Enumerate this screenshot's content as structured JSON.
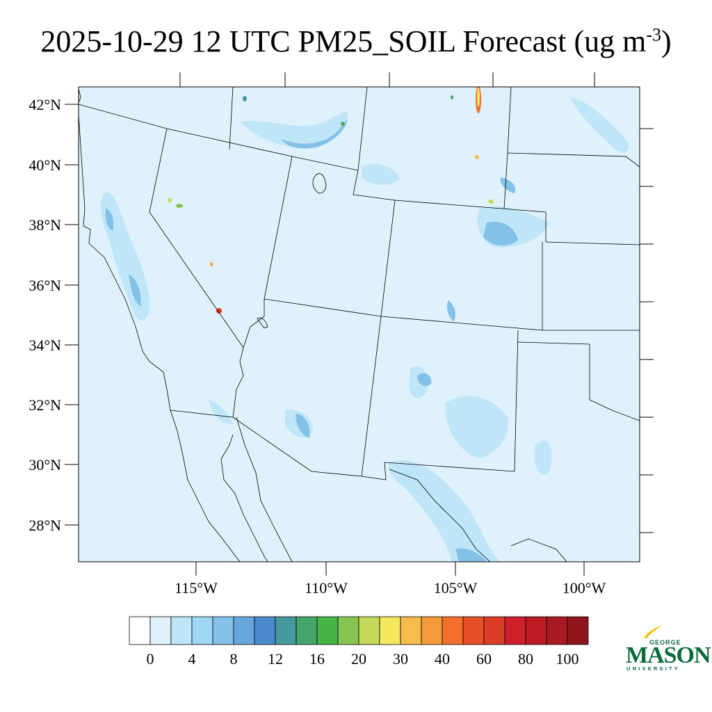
{
  "title": {
    "text": "2025-10-29 12 UTC PM25_SOIL Forecast (ug m",
    "superscript": "-3",
    "close": ")"
  },
  "map": {
    "background_color": "#dff1fb",
    "latitude_labels": [
      "42°N",
      "40°N",
      "38°N",
      "36°N",
      "34°N",
      "32°N",
      "30°N",
      "28°N"
    ],
    "longitude_labels": [
      "115°W",
      "110°W",
      "105°W",
      "100°W"
    ]
  },
  "colorbar": {
    "colors": [
      "#ffffff",
      "#dff1fb",
      "#bfe6f8",
      "#a0d8f4",
      "#84c1e8",
      "#66a7dc",
      "#4a8acc",
      "#46999c",
      "#45a56b",
      "#47b447",
      "#86c551",
      "#c4d85a",
      "#f6e85c",
      "#f7bd4a",
      "#f59a3a",
      "#f2702c",
      "#e65028",
      "#dc3b26",
      "#d01e2a",
      "#bc1b26",
      "#a71a22",
      "#8f141c"
    ],
    "labels": [
      "0",
      "4",
      "8",
      "12",
      "16",
      "20",
      "30",
      "40",
      "60",
      "80",
      "100"
    ]
  },
  "logo": {
    "top": "GEORGE",
    "main": "MASON",
    "sub": "UNIVERSITY",
    "color": "#0a6b3a",
    "accent": "#f2c200"
  }
}
